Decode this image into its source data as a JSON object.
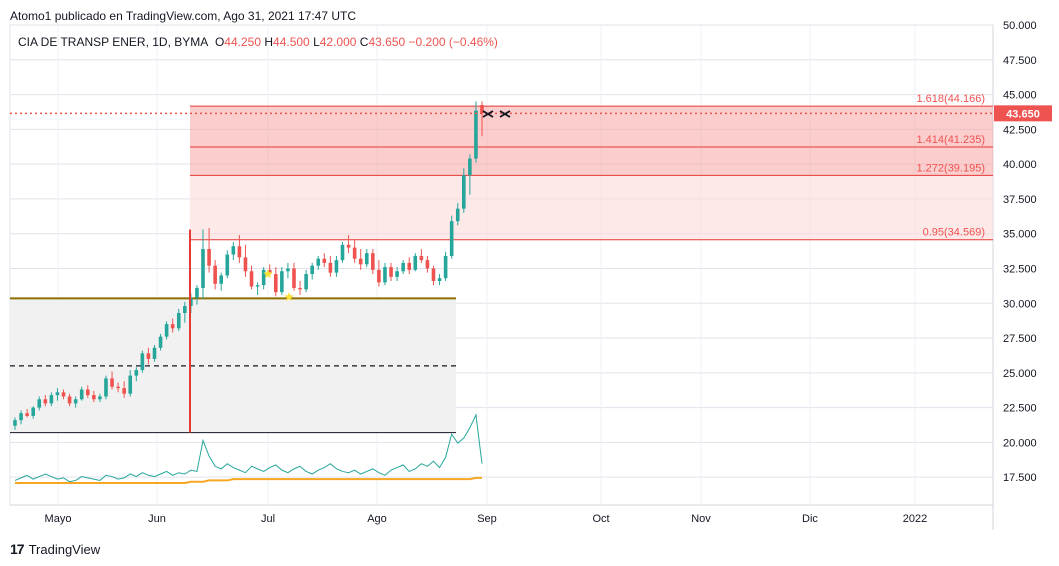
{
  "header": {
    "published": "Atomo1 publicado en TradingView.com, Ago 31, 2021 17:47 UTC"
  },
  "legend": {
    "symbol": "CIA DE TRANSP ENER, 1D, BYMA",
    "open_label": "O",
    "open": "44.250",
    "high_label": "H",
    "high": "44.500",
    "low_label": "L",
    "low": "42.000",
    "close_label": "C",
    "close": "43.650",
    "change": "−0.200 (−0.46%)"
  },
  "footer": {
    "brand": "TradingView",
    "logo": "17"
  },
  "chart_data": {
    "type": "candlestick",
    "title": "CIA DE TRANSP ENER, 1D, BYMA",
    "ylim": [
      15.5,
      50.0
    ],
    "y_ticks": [
      "17.500",
      "20.000",
      "22.500",
      "25.000",
      "27.500",
      "30.000",
      "32.500",
      "35.000",
      "37.500",
      "40.000",
      "42.500",
      "45.000",
      "47.500",
      "50.000"
    ],
    "x_ticks": [
      "Mayo",
      "Jun",
      "Jul",
      "Ago",
      "Sep",
      "Oct",
      "Nov",
      "Dic",
      "2022"
    ],
    "last_price": "43.650",
    "last_price_value": 43.65,
    "fib_levels": [
      {
        "label": "1.618(44.166)",
        "value": 44.166
      },
      {
        "label": "1.414(41.235)",
        "value": 41.235
      },
      {
        "label": "1.272(39.195)",
        "value": 39.195
      },
      {
        "label": "0.95(34.569)",
        "value": 34.569
      }
    ],
    "horizontal_lines": [
      {
        "name": "support",
        "value": 30.35,
        "color": "#8d6e00"
      },
      {
        "name": "dashed",
        "value": 25.5,
        "color": "#131722"
      },
      {
        "name": "base",
        "value": 20.7,
        "color": "#131722"
      }
    ],
    "candles": [
      [
        21.2,
        21.8,
        20.9,
        21.6
      ],
      [
        21.6,
        22.3,
        21.3,
        22.1
      ],
      [
        22.1,
        22.4,
        21.8,
        21.9
      ],
      [
        21.9,
        22.6,
        21.7,
        22.5
      ],
      [
        22.5,
        23.3,
        22.3,
        23.1
      ],
      [
        23.1,
        23.4,
        22.6,
        22.8
      ],
      [
        22.8,
        23.6,
        22.6,
        23.4
      ],
      [
        23.4,
        23.9,
        23.0,
        23.6
      ],
      [
        23.6,
        23.8,
        23.1,
        23.3
      ],
      [
        23.3,
        23.5,
        22.6,
        22.8
      ],
      [
        22.8,
        23.3,
        22.5,
        23.1
      ],
      [
        23.1,
        24.0,
        23.0,
        23.8
      ],
      [
        23.8,
        24.1,
        23.2,
        23.4
      ],
      [
        23.4,
        23.7,
        22.9,
        23.1
      ],
      [
        23.1,
        23.5,
        22.9,
        23.3
      ],
      [
        23.3,
        24.8,
        23.1,
        24.6
      ],
      [
        24.6,
        25.1,
        23.8,
        24.0
      ],
      [
        24.0,
        24.3,
        23.6,
        23.9
      ],
      [
        23.9,
        24.4,
        23.2,
        23.5
      ],
      [
        23.5,
        25.2,
        23.3,
        24.8
      ],
      [
        24.8,
        25.4,
        24.4,
        25.2
      ],
      [
        25.2,
        26.6,
        25.0,
        26.4
      ],
      [
        26.4,
        26.8,
        25.6,
        26.0
      ],
      [
        26.0,
        27.0,
        25.8,
        26.8
      ],
      [
        26.8,
        27.8,
        26.6,
        27.6
      ],
      [
        27.6,
        28.7,
        27.4,
        28.5
      ],
      [
        28.5,
        28.9,
        27.9,
        28.2
      ],
      [
        28.2,
        29.6,
        28.0,
        29.3
      ],
      [
        29.3,
        30.1,
        28.6,
        29.8
      ],
      [
        29.8,
        30.7,
        29.3,
        30.4
      ],
      [
        30.4,
        31.3,
        29.9,
        31.1
      ],
      [
        31.1,
        35.3,
        30.3,
        33.9
      ],
      [
        33.9,
        35.4,
        32.2,
        32.7
      ],
      [
        32.7,
        33.1,
        31.0,
        31.4
      ],
      [
        31.4,
        32.2,
        30.9,
        32.0
      ],
      [
        32.0,
        33.8,
        31.8,
        33.5
      ],
      [
        33.5,
        34.4,
        33.1,
        34.1
      ],
      [
        34.1,
        34.9,
        32.9,
        33.3
      ],
      [
        33.3,
        34.2,
        31.9,
        32.3
      ],
      [
        32.3,
        32.7,
        31.0,
        31.2
      ],
      [
        31.2,
        31.5,
        30.6,
        31.3
      ],
      [
        31.3,
        32.6,
        31.0,
        32.4
      ],
      [
        32.4,
        32.8,
        31.9,
        32.1
      ],
      [
        32.1,
        32.6,
        30.5,
        30.8
      ],
      [
        30.8,
        32.6,
        30.6,
        32.3
      ],
      [
        32.3,
        32.9,
        31.8,
        32.5
      ],
      [
        32.5,
        32.9,
        30.9,
        31.1
      ],
      [
        31.1,
        31.6,
        30.6,
        31.0
      ],
      [
        31.0,
        32.4,
        30.8,
        32.1
      ],
      [
        32.1,
        32.9,
        31.7,
        32.7
      ],
      [
        32.7,
        33.4,
        32.4,
        33.2
      ],
      [
        33.2,
        33.6,
        32.6,
        32.9
      ],
      [
        32.9,
        33.4,
        31.9,
        32.2
      ],
      [
        32.2,
        33.4,
        31.9,
        33.1
      ],
      [
        33.1,
        34.4,
        32.9,
        34.2
      ],
      [
        34.2,
        34.9,
        33.6,
        34.0
      ],
      [
        34.0,
        34.6,
        32.9,
        33.2
      ],
      [
        33.2,
        33.9,
        32.4,
        32.8
      ],
      [
        32.8,
        33.9,
        32.6,
        33.6
      ],
      [
        33.6,
        33.9,
        32.1,
        32.4
      ],
      [
        32.4,
        33.1,
        31.2,
        31.5
      ],
      [
        31.5,
        32.9,
        31.3,
        32.6
      ],
      [
        32.6,
        32.9,
        31.6,
        31.9
      ],
      [
        31.9,
        32.6,
        31.6,
        32.3
      ],
      [
        32.3,
        33.1,
        32.1,
        32.9
      ],
      [
        32.9,
        33.3,
        32.1,
        32.4
      ],
      [
        32.4,
        33.6,
        32.3,
        33.4
      ],
      [
        33.4,
        33.9,
        32.9,
        33.1
      ],
      [
        33.1,
        33.4,
        32.2,
        32.5
      ],
      [
        32.5,
        32.7,
        31.3,
        31.6
      ],
      [
        31.6,
        32.1,
        31.3,
        31.8
      ],
      [
        31.8,
        33.7,
        31.6,
        33.4
      ],
      [
        33.4,
        36.3,
        33.2,
        35.9
      ],
      [
        35.9,
        37.2,
        35.6,
        36.8
      ],
      [
        36.8,
        39.7,
        36.5,
        39.2
      ],
      [
        39.2,
        40.7,
        37.8,
        40.4
      ],
      [
        40.4,
        44.5,
        40.1,
        43.85
      ],
      [
        44.25,
        44.5,
        42.0,
        43.65
      ]
    ],
    "volume": [
      9,
      11,
      13,
      10,
      12,
      14,
      12,
      10,
      11,
      8,
      9,
      12,
      11,
      10,
      9,
      13,
      12,
      10,
      11,
      14,
      12,
      15,
      13,
      12,
      14,
      16,
      13,
      15,
      14,
      17,
      16,
      40,
      28,
      20,
      18,
      22,
      19,
      17,
      15,
      20,
      18,
      16,
      19,
      21,
      17,
      15,
      18,
      20,
      16,
      14,
      17,
      19,
      22,
      18,
      16,
      15,
      17,
      14,
      16,
      18,
      15,
      13,
      17,
      19,
      21,
      16,
      18,
      22,
      20,
      24,
      19,
      27,
      45,
      38,
      42,
      50,
      60,
      22
    ],
    "volume_ma": [
      7,
      7,
      7,
      7,
      7,
      7,
      7,
      7,
      7,
      7,
      7,
      7,
      7,
      7,
      7,
      7,
      7,
      7,
      7,
      7,
      7,
      7,
      7,
      7,
      7,
      7,
      7,
      7,
      7,
      8,
      8,
      8,
      9,
      9,
      9,
      9,
      10,
      10,
      10,
      10,
      10,
      10,
      10,
      10,
      10,
      10,
      10,
      10,
      10,
      10,
      10,
      10,
      10,
      10,
      10,
      10,
      10,
      10,
      10,
      10,
      10,
      10,
      10,
      10,
      10,
      10,
      10,
      10,
      10,
      10,
      10,
      10,
      10,
      10,
      10,
      10,
      11,
      11
    ]
  }
}
